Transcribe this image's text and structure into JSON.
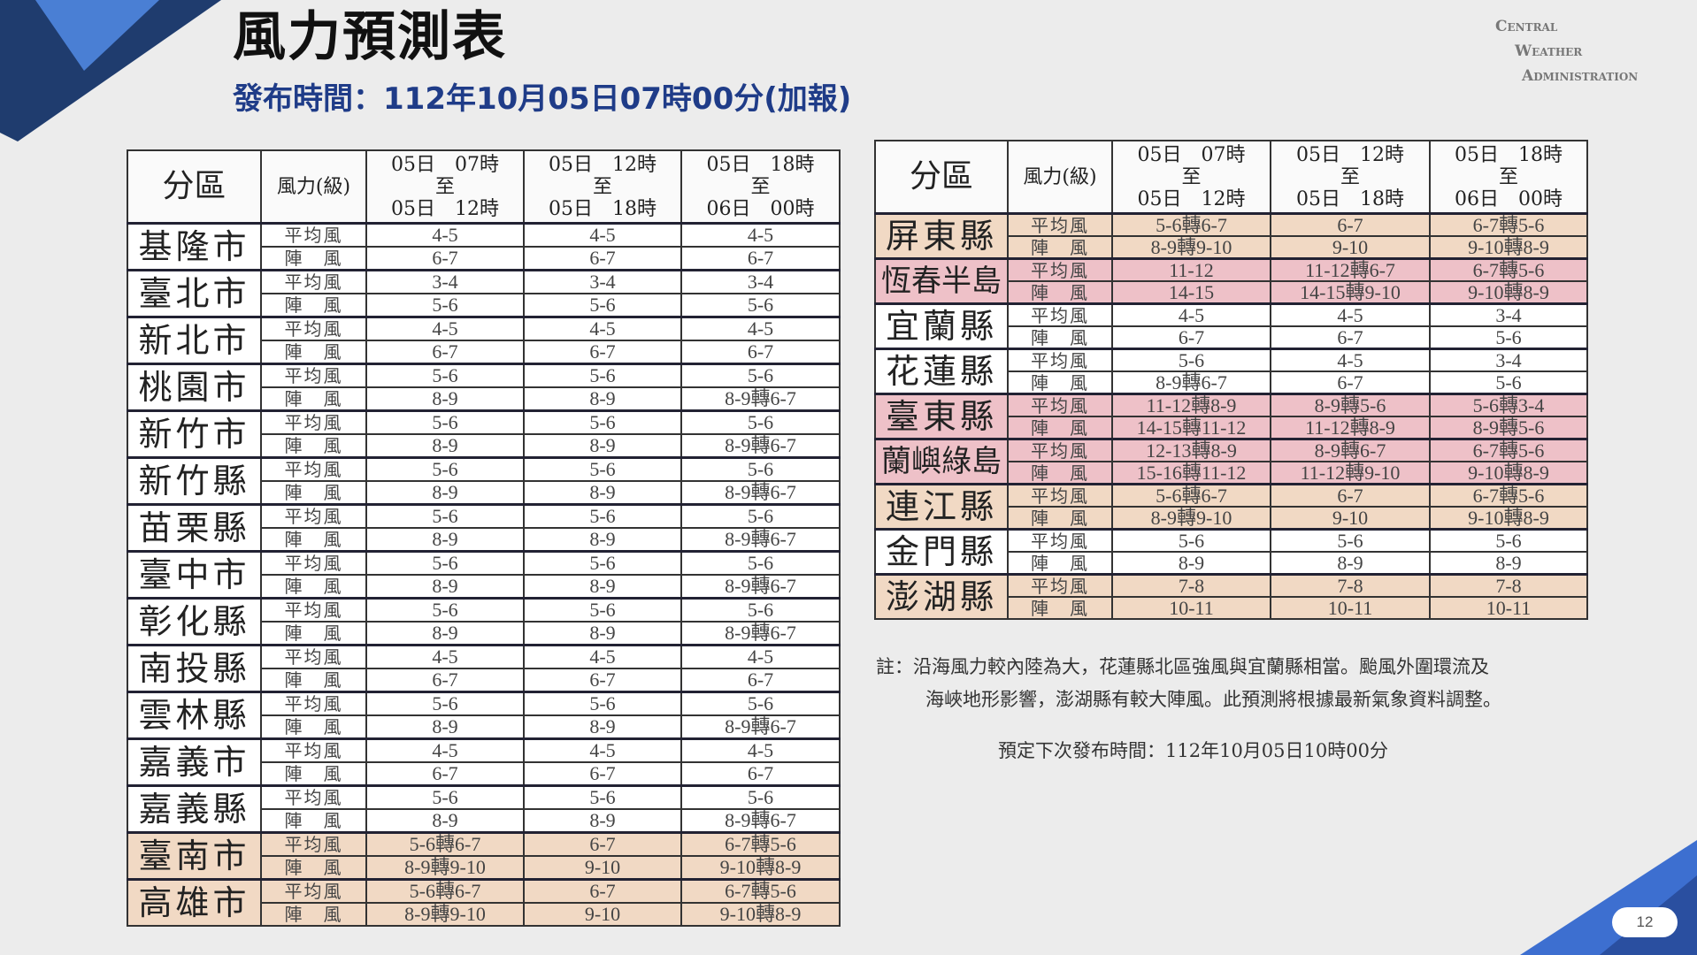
{
  "title": "風力預測表",
  "subtitle": "發布時間：112年10月05日07時00分(加報)",
  "logo": [
    "Central",
    "Weather",
    "Administration"
  ],
  "headers": {
    "region": "分區",
    "level": "風力(級)",
    "periods": [
      {
        "from": "05日　07時",
        "to_word": "至",
        "to": "05日　12時"
      },
      {
        "from": "05日　12時",
        "to_word": "至",
        "to": "05日　18時"
      },
      {
        "from": "05日　18時",
        "to_word": "至",
        "to": "06日　00時"
      }
    ]
  },
  "kinds": {
    "avg": "平均風",
    "gust": "陣　風"
  },
  "highlight_colors": {
    "orange": "#f1d9c4",
    "red": "#eec1c8"
  },
  "left_table": [
    {
      "city": "基隆市",
      "avg": [
        "4-5",
        "4-5",
        "4-5"
      ],
      "gust": [
        "6-7",
        "6-7",
        "6-7"
      ]
    },
    {
      "city": "臺北市",
      "avg": [
        "3-4",
        "3-4",
        "3-4"
      ],
      "gust": [
        "5-6",
        "5-6",
        "5-6"
      ]
    },
    {
      "city": "新北市",
      "avg": [
        "4-5",
        "4-5",
        "4-5"
      ],
      "gust": [
        "6-7",
        "6-7",
        "6-7"
      ]
    },
    {
      "city": "桃園市",
      "avg": [
        "5-6",
        "5-6",
        "5-6"
      ],
      "gust": [
        "8-9",
        "8-9",
        "8-9轉6-7"
      ]
    },
    {
      "city": "新竹市",
      "avg": [
        "5-6",
        "5-6",
        "5-6"
      ],
      "gust": [
        "8-9",
        "8-9",
        "8-9轉6-7"
      ]
    },
    {
      "city": "新竹縣",
      "avg": [
        "5-6",
        "5-6",
        "5-6"
      ],
      "gust": [
        "8-9",
        "8-9",
        "8-9轉6-7"
      ]
    },
    {
      "city": "苗栗縣",
      "avg": [
        "5-6",
        "5-6",
        "5-6"
      ],
      "gust": [
        "8-9",
        "8-9",
        "8-9轉6-7"
      ]
    },
    {
      "city": "臺中市",
      "avg": [
        "5-6",
        "5-6",
        "5-6"
      ],
      "gust": [
        "8-9",
        "8-9",
        "8-9轉6-7"
      ]
    },
    {
      "city": "彰化縣",
      "avg": [
        "5-6",
        "5-6",
        "5-6"
      ],
      "gust": [
        "8-9",
        "8-9",
        "8-9轉6-7"
      ]
    },
    {
      "city": "南投縣",
      "avg": [
        "4-5",
        "4-5",
        "4-5"
      ],
      "gust": [
        "6-7",
        "6-7",
        "6-7"
      ]
    },
    {
      "city": "雲林縣",
      "avg": [
        "5-6",
        "5-6",
        "5-6"
      ],
      "gust": [
        "8-9",
        "8-9",
        "8-9轉6-7"
      ]
    },
    {
      "city": "嘉義市",
      "avg": [
        "4-5",
        "4-5",
        "4-5"
      ],
      "gust": [
        "6-7",
        "6-7",
        "6-7"
      ]
    },
    {
      "city": "嘉義縣",
      "avg": [
        "5-6",
        "5-6",
        "5-6"
      ],
      "gust": [
        "8-9",
        "8-9",
        "8-9轉6-7"
      ]
    },
    {
      "city": "臺南市",
      "highlight": "orange",
      "avg": [
        "5-6轉6-7",
        "6-7",
        "6-7轉5-6"
      ],
      "gust": [
        "8-9轉9-10",
        "9-10",
        "9-10轉8-9"
      ]
    },
    {
      "city": "高雄市",
      "highlight": "orange",
      "avg": [
        "5-6轉6-7",
        "6-7",
        "6-7轉5-6"
      ],
      "gust": [
        "8-9轉9-10",
        "9-10",
        "9-10轉8-9"
      ]
    }
  ],
  "right_table": [
    {
      "city": "屏東縣",
      "highlight": "orange",
      "avg": [
        "5-6轉6-7",
        "6-7",
        "6-7轉5-6"
      ],
      "gust": [
        "8-9轉9-10",
        "9-10",
        "9-10轉8-9"
      ]
    },
    {
      "city": "恆春半島",
      "highlight": "red",
      "avg": [
        "11-12",
        "11-12轉6-7",
        "6-7轉5-6"
      ],
      "gust": [
        "14-15",
        "14-15轉9-10",
        "9-10轉8-9"
      ]
    },
    {
      "city": "宜蘭縣",
      "avg": [
        "4-5",
        "4-5",
        "3-4"
      ],
      "gust": [
        "6-7",
        "6-7",
        "5-6"
      ]
    },
    {
      "city": "花蓮縣",
      "avg": [
        "5-6",
        "4-5",
        "3-4"
      ],
      "gust": [
        "8-9轉6-7",
        "6-7",
        "5-6"
      ]
    },
    {
      "city": "臺東縣",
      "highlight": "red",
      "avg": [
        "11-12轉8-9",
        "8-9轉5-6",
        "5-6轉3-4"
      ],
      "gust": [
        "14-15轉11-12",
        "11-12轉8-9",
        "8-9轉5-6"
      ]
    },
    {
      "city": "蘭嶼綠島",
      "highlight": "red",
      "avg": [
        "12-13轉8-9",
        "8-9轉6-7",
        "6-7轉5-6"
      ],
      "gust": [
        "15-16轉11-12",
        "11-12轉9-10",
        "9-10轉8-9"
      ]
    },
    {
      "city": "連江縣",
      "highlight": "orange",
      "avg": [
        "5-6轉6-7",
        "6-7",
        "6-7轉5-6"
      ],
      "gust": [
        "8-9轉9-10",
        "9-10",
        "9-10轉8-9"
      ]
    },
    {
      "city": "金門縣",
      "avg": [
        "5-6",
        "5-6",
        "5-6"
      ],
      "gust": [
        "8-9",
        "8-9",
        "8-9"
      ]
    },
    {
      "city": "澎湖縣",
      "highlight": "orange",
      "avg": [
        "7-8",
        "7-8",
        "7-8"
      ],
      "gust": [
        "10-11",
        "10-11",
        "10-11"
      ]
    }
  ],
  "note": {
    "line1": "註：沿海風力較內陸為大，花蓮縣北區強風與宜蘭縣相當。颱風外圍環流及",
    "line2": "海峽地形影響，澎湖縣有較大陣風。此預測將根據最新氣象資料調整。"
  },
  "next_release": "預定下次發布時間：112年10月05日10時00分",
  "page_number": "12"
}
